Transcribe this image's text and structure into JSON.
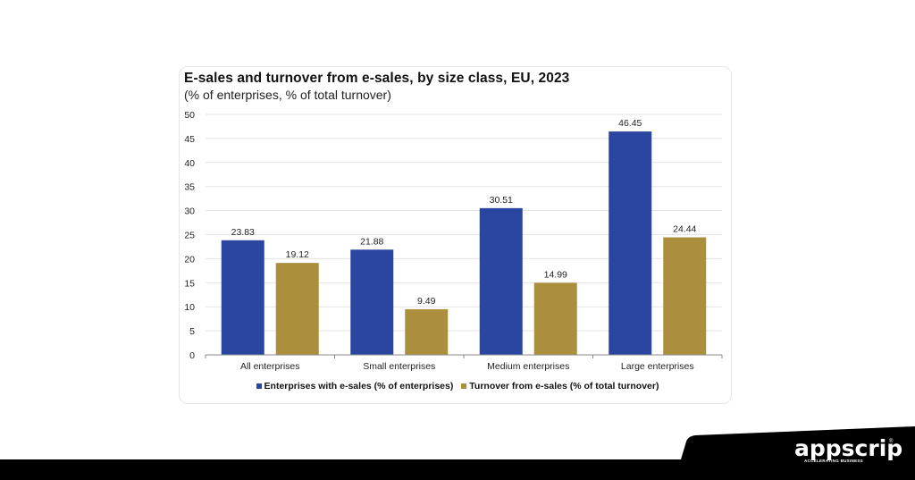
{
  "chart_data": {
    "type": "bar",
    "title": "E-sales and turnover from e-sales, by size class, EU, 2023",
    "subtitle": "(% of enterprises, % of total turnover)",
    "xlabel": "",
    "ylabel": "",
    "ylim": [
      0,
      50
    ],
    "yticks": [
      0,
      5,
      10,
      15,
      20,
      25,
      30,
      35,
      40,
      45,
      50
    ],
    "grid": true,
    "legend_position": "bottom",
    "categories": [
      "All enterprises",
      "Small enterprises",
      "Medium enterprises",
      "Large enterprises"
    ],
    "series": [
      {
        "name": "Enterprises with e-sales (% of enterprises)",
        "color": "#2a46a0",
        "values": [
          23.83,
          21.88,
          30.51,
          46.45
        ],
        "labels": [
          "23.83",
          "21.88",
          "30.51",
          "46.45"
        ]
      },
      {
        "name": "Turnover from e-sales (% of total turnover)",
        "color": "#ac8f3c",
        "values": [
          19.12,
          9.49,
          14.99,
          24.44
        ],
        "labels": [
          "19.12",
          "9.49",
          "14.99",
          "24.44"
        ]
      }
    ]
  },
  "branding": {
    "logo_text": "appscrip",
    "logo_tagline": "ACCELERATING BUSINESS",
    "logo_mark": "®"
  }
}
